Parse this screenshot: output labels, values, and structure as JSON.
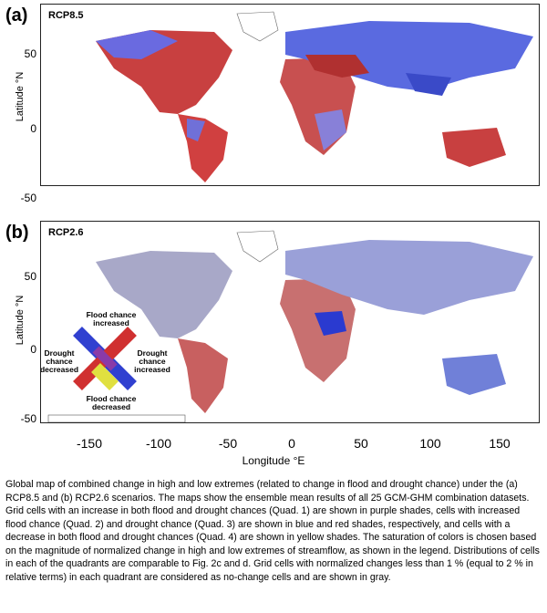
{
  "panels": [
    {
      "letter": "(a)",
      "scenario": "RCP8.5"
    },
    {
      "letter": "(b)",
      "scenario": "RCP2.6"
    }
  ],
  "axes": {
    "ylabel": "Latitude °N",
    "xlabel": "Longitude °E",
    "yticks": [
      "50",
      "0",
      "-50"
    ],
    "xticks": [
      "-150",
      "-100",
      "-50",
      "0",
      "50",
      "100",
      "150"
    ]
  },
  "legend": {
    "top": "Flood chance increased",
    "bottom": "Flood chance decreased",
    "left": "Drought chance decreased",
    "right": "Drought chance increased"
  },
  "caption": "Global map of combined change in high and low extremes (related to change in flood and drought chance) under the (a) RCP8.5 and (b) RCP2.6 scenarios. The maps show the ensemble mean results of all 25 GCM-GHM combination datasets. Grid cells with an increase in both flood and drought chances (Quad. 1) are shown in purple shades, cells with increased flood chance (Quad. 2) and drought chance (Quad. 3) are shown in blue and red shades, respectively, and cells with a decrease in both flood and drought chances (Quad. 4) are shown in yellow shades. The saturation of colors is chosen based on the magnitude of normalized change in high and low extremes of streamflow, as shown in the legend. Distributions of cells in each of the quadrants are comparable to Fig. 2c and d. Grid cells with normalized changes less than 1 % (equal to 2 % in relative terms) in each quadrant are considered as no-change cells and are shown in gray.",
  "colors": {
    "flood": "#3040d0",
    "drought": "#d03030",
    "both": "#8a3aa8",
    "neither": "#e8e040",
    "nochange": "#b8b8c0"
  }
}
